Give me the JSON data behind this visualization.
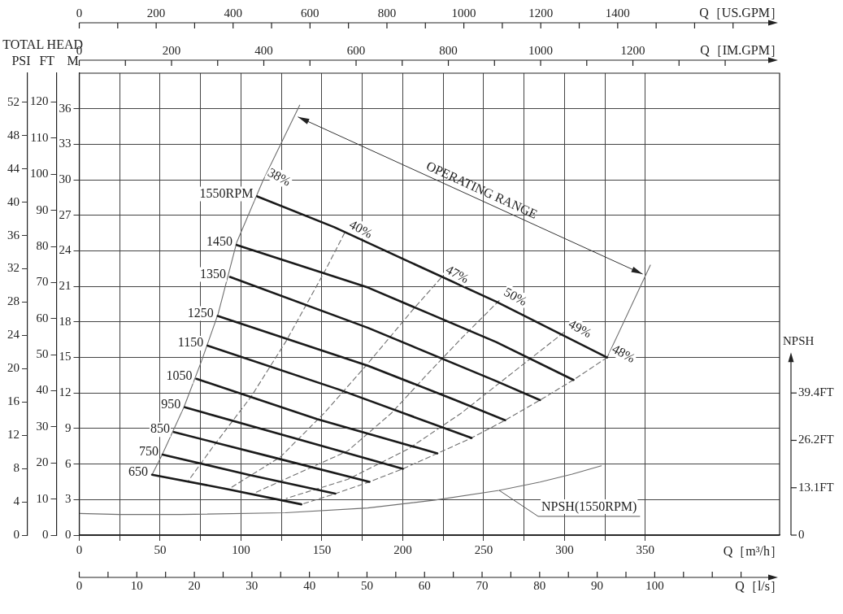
{
  "chart_data": {
    "type": "line",
    "xlabel": "Q［m³/h］",
    "x2label": "Q［US.GPM］",
    "ylabel": "M",
    "y2label": "FT",
    "y3label": "PSI",
    "annotations": [
      "TOTAL HEAD",
      "OPERATING RANGE",
      "Q［IM.GPM］",
      "0",
      "200",
      "400",
      "600",
      "800",
      "1000",
      "1200",
      "Q［l/s］",
      "0",
      "10",
      "20",
      "30",
      "40",
      "50",
      "60",
      "70",
      "80",
      "90",
      "100",
      "NPSH",
      "0",
      "13.1FT",
      "26.2FT",
      "39.4FT"
    ],
    "xlim": [
      0,
      433
    ],
    "xticks": [
      0,
      {
        "value": 25,
        "label": null
      },
      50,
      {
        "value": 75,
        "label": null
      },
      100,
      {
        "value": 125,
        "label": null
      },
      150,
      {
        "value": 175,
        "label": null
      },
      200,
      {
        "value": 225,
        "label": null
      },
      250,
      {
        "value": 275,
        "label": null
      },
      300,
      {
        "value": 325,
        "label": null
      },
      350
    ],
    "x2lim": [
      0,
      1821
    ],
    "x2ticks": [
      0,
      200,
      400,
      600,
      800,
      1000,
      1200,
      1400
    ],
    "ylim": [
      0,
      39
    ],
    "yticks": [
      0,
      3,
      6,
      9,
      12,
      15,
      18,
      21,
      24,
      27,
      30,
      33,
      36
    ],
    "y2lim": [
      0,
      128
    ],
    "y2ticks": [
      0,
      10,
      20,
      30,
      40,
      50,
      60,
      70,
      80,
      90,
      100,
      110,
      120
    ],
    "y3lim": [
      0,
      55.5
    ],
    "y3ticks": [
      0,
      4,
      8,
      12,
      16,
      20,
      24,
      28,
      32,
      36,
      40,
      44,
      48,
      52
    ],
    "grid": true,
    "legend": false,
    "marker": "none",
    "series": [
      {
        "name": "1550RPM",
        "color": "#1a1a1a",
        "x": [
          110,
          157.7,
          203.7,
          258,
          326.4
        ],
        "values": [
          28.6,
          26.0,
          23.1,
          19.7,
          15.0
        ]
      },
      {
        "name": "1450",
        "color": "#1a1a1a",
        "x": [
          97.3,
          178.5,
          257.8,
          305.6
        ],
        "values": [
          24.5,
          20.9,
          16.3,
          13.1
        ]
      },
      {
        "name": "1350",
        "color": "#1a1a1a",
        "x": [
          93.2,
          178.5,
          257.8,
          284.9
        ],
        "values": [
          21.8,
          17.5,
          13.0,
          11.4
        ]
      },
      {
        "name": "1250",
        "color": "#1a1a1a",
        "x": [
          85.6,
          178.5,
          232.6,
          263.3
        ],
        "values": [
          18.5,
          14.3,
          11.4,
          9.7
        ]
      },
      {
        "name": "1150",
        "color": "#1a1a1a",
        "x": [
          79.3,
          160.4,
          242.5
        ],
        "values": [
          16.0,
          12.3,
          8.2
        ]
      },
      {
        "name": "1050",
        "color": "#1a1a1a",
        "x": [
          72.4,
          146.9,
          221.4
        ],
        "values": [
          13.2,
          9.8,
          6.9
        ]
      },
      {
        "name": "950",
        "color": "#1a1a1a",
        "x": [
          65.2,
          132.5,
          200.1
        ],
        "values": [
          10.8,
          8.2,
          5.6
        ]
      },
      {
        "name": "850",
        "color": "#1a1a1a",
        "x": [
          58.5,
          118.9,
          179.4
        ],
        "values": [
          8.7,
          6.6,
          4.5
        ]
      },
      {
        "name": "750",
        "color": "#1a1a1a",
        "x": [
          51.5,
          104.5,
          158.3
        ],
        "values": [
          6.8,
          5.1,
          3.5
        ]
      },
      {
        "name": "650",
        "color": "#1a1a1a",
        "x": [
          45.0,
          91.0,
          137.3
        ],
        "values": [
          5.1,
          3.9,
          2.6
        ]
      },
      {
        "name": "38%",
        "color": "#6e6e6e",
        "x": [
          136.3,
          113.5,
          97.3,
          85.9,
          75.6,
          64.7,
          51.3,
          45.0
        ],
        "values": [
          36.3,
          29.9,
          24.7,
          18.7,
          14.7,
          10.8,
          6.8,
          5.1
        ]
      },
      {
        "name": "40%",
        "color": "#6e6e6e",
        "line_style": "dashed",
        "x": [
          164.0,
          152.3,
          128.0,
          106.3,
          82.9,
          67.5
        ],
        "values": [
          25.5,
          22.4,
          16.4,
          11.7,
          7.5,
          4.6
        ]
      },
      {
        "name": "47%",
        "color": "#6e6e6e",
        "line_style": "dashed",
        "x": [
          223.6,
          207.3,
          178.5,
          151.4,
          124.4,
          93.7
        ],
        "values": [
          21.7,
          19.2,
          14.5,
          10.3,
          6.6,
          4.0
        ]
      },
      {
        "name": "50%",
        "color": "#6e6e6e",
        "line_style": "dashed",
        "x": [
          259.6,
          236.2,
          214.6,
          193.0,
          165.9,
          109.0
        ],
        "values": [
          19.8,
          16.6,
          13.5,
          10.3,
          7.1,
          3.6
        ]
      },
      {
        "name": "49%",
        "color": "#6e6e6e",
        "line_style": "dashed",
        "x": [
          299.5,
          268.7,
          236.2,
          203.7,
          165.9,
          128.0
        ],
        "values": [
          17.1,
          13.8,
          10.3,
          7.3,
          4.7,
          3.1
        ]
      },
      {
        "name": "48%",
        "color": "#6e6e6e",
        "line_style": "dashed",
        "x": [
          326.4,
          305.5,
          284.9,
          263.3,
          242.5,
          221.4,
          200.1,
          179.4,
          158.3,
          137.3
        ],
        "values": [
          15.0,
          13.1,
          11.4,
          9.7,
          8.2,
          6.9,
          5.6,
          4.5,
          3.5,
          2.6
        ]
      },
      {
        "color": "#6e6e6e",
        "x": [
          326.4,
          353.1
        ],
        "values": [
          15.0,
          22.8
        ]
      },
      {
        "name": "NPSH(1550RPM)",
        "color": "#6e6e6e",
        "x": [
          0,
          25,
          62.6,
          127.4,
          178.4,
          220.1,
          259.6,
          284.9,
          304.8,
          322.8
        ],
        "values": [
          1.83,
          1.74,
          1.74,
          1.89,
          2.29,
          2.96,
          3.78,
          4.48,
          5.15,
          5.85
        ]
      }
    ]
  }
}
